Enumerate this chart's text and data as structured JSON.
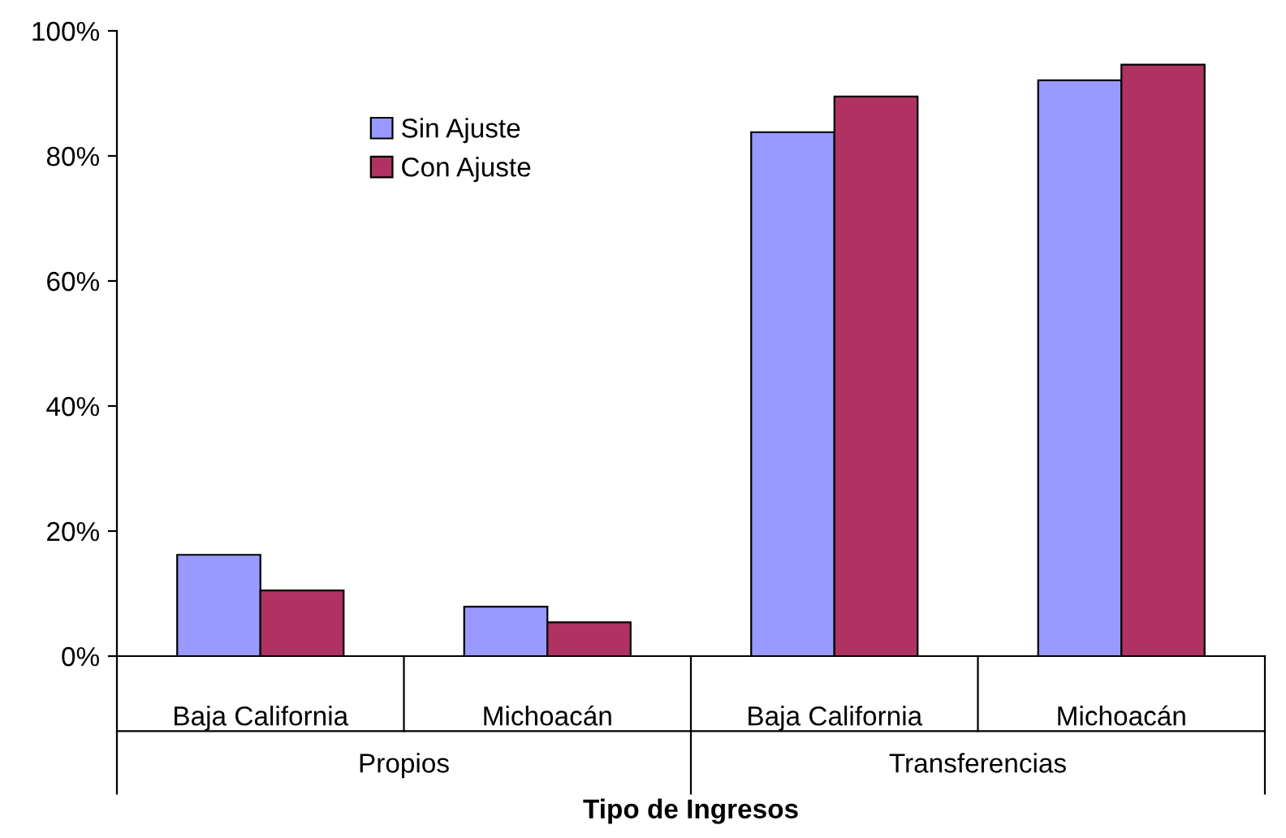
{
  "chart_data": {
    "type": "bar",
    "xlabel": "Tipo de Ingresos",
    "categories": [
      "Baja California",
      "Michoacán",
      "Baja California",
      "Michoacán"
    ],
    "annotations": [
      "Propios",
      "Transferencias"
    ],
    "series": [
      {
        "name": "Sin Ajuste",
        "color": "#9999ff",
        "values": [
          16.2,
          7.9,
          83.8,
          92.1
        ]
      },
      {
        "name": "Con Ajuste",
        "color": "#b03262",
        "values": [
          10.5,
          5.4,
          89.5,
          94.6
        ]
      }
    ],
    "ylim": [
      0,
      100
    ],
    "yticks": [
      {
        "value": 0,
        "label": "0%"
      },
      {
        "value": 20,
        "label": "20%"
      },
      {
        "value": 40,
        "label": "40%"
      },
      {
        "value": 60,
        "label": "60%"
      },
      {
        "value": 80,
        "label": "80%"
      },
      {
        "value": 100,
        "label": "100%"
      }
    ],
    "grid": false,
    "legend": "top left"
  }
}
